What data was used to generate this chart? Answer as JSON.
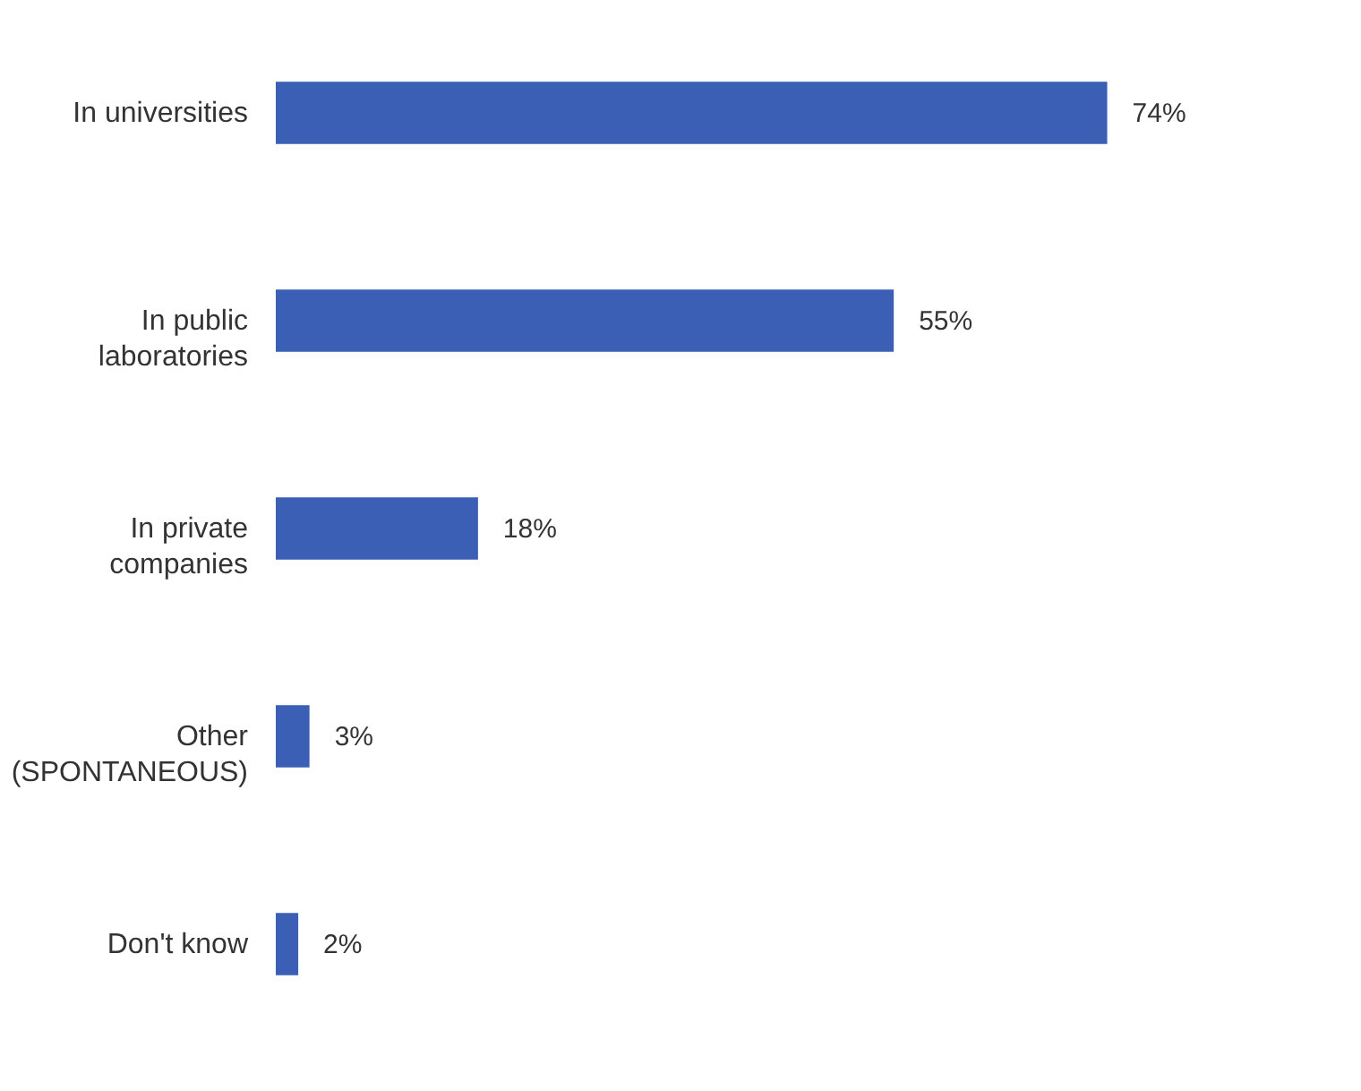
{
  "chart_data": {
    "type": "bar",
    "orientation": "horizontal",
    "categories": [
      "In universities",
      "In public\nlaboratories",
      "In private\ncompanies",
      "Other\n(SPONTANEOUS)",
      "Don't know"
    ],
    "values": [
      74,
      55,
      18,
      3,
      2
    ],
    "value_labels": [
      "74%",
      "55%",
      "18%",
      "3%",
      "2%"
    ],
    "color": "#3a5fb4"
  }
}
